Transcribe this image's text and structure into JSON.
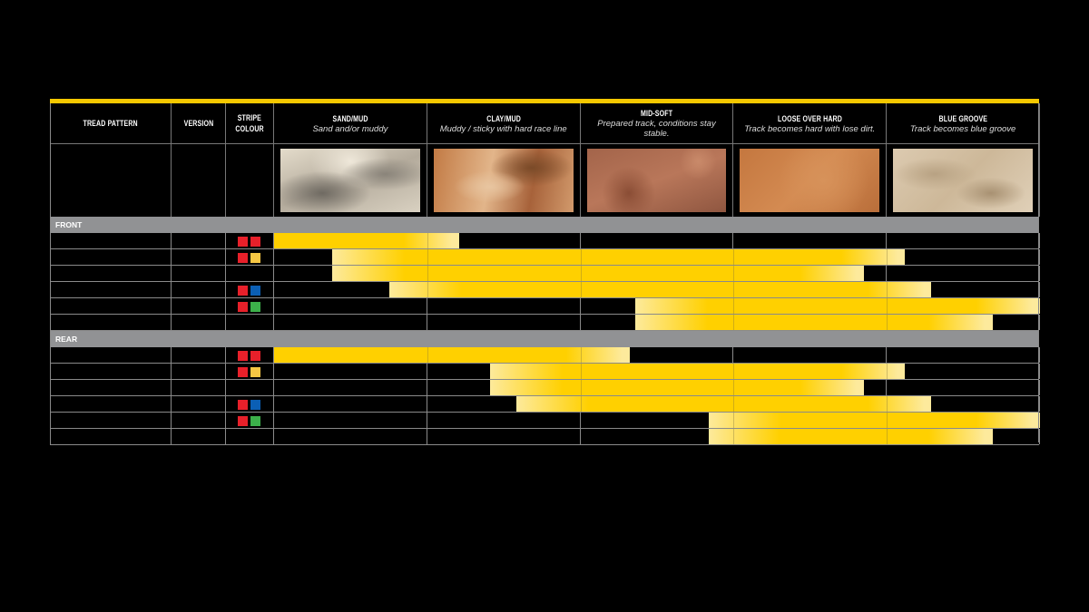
{
  "colors": {
    "accent": "#ffd000",
    "accent_light": "#fdea9c",
    "band": "#919294",
    "top_line": "#f5c800",
    "stripe": {
      "red": "#e8202a",
      "yellow": "#f7c744",
      "blue": "#0b5fb5",
      "green": "#3cb04a"
    }
  },
  "header": {
    "tread_pattern": "TREAD PATTERN",
    "version": "VERSION",
    "stripe_colour": [
      "STRIPE",
      "COLOUR"
    ],
    "conditions": [
      {
        "title": "SAND/MUD",
        "subtitle": "Sand and/or muddy",
        "image": "sand-texture"
      },
      {
        "title": "CLAY/MUD",
        "subtitle": "Muddy / sticky with hard race line",
        "image": "clay-mud-texture"
      },
      {
        "title": "MID-SOFT",
        "subtitle": "Prepared track, conditions stay stable.",
        "image": "mid-soft-soil-texture"
      },
      {
        "title": "LOOSE OVER HARD",
        "subtitle": "Track becomes hard with lose dirt.",
        "image": "loose-over-hard-texture"
      },
      {
        "title": "BLUE GROOVE",
        "subtitle": "Track becomes blue groove",
        "image": "blue-groove-texture"
      }
    ]
  },
  "chart_data": {
    "type": "range-bar",
    "scale": "condition columns 0-5 (Sand/Mud → Blue Groove)",
    "sections": [
      {
        "label": "FRONT",
        "rows": [
          {
            "stripe": [
              "red",
              "red"
            ],
            "range": [
              0,
              1.21
            ],
            "fade_start": false
          },
          {
            "stripe": [
              "red",
              "yellow"
            ],
            "range": [
              0.38,
              4.12
            ],
            "fade_start": true
          },
          {
            "stripe": [],
            "range": [
              0.38,
              3.85
            ],
            "fade_start": true
          },
          {
            "stripe": [
              "red",
              "blue"
            ],
            "range": [
              0.75,
              4.29
            ],
            "fade_start": true
          },
          {
            "stripe": [
              "red",
              "green"
            ],
            "range": [
              2.36,
              5.0
            ],
            "fade_start": true
          },
          {
            "stripe": [],
            "range": [
              2.36,
              4.69
            ],
            "fade_start": true
          }
        ]
      },
      {
        "label": "REAR",
        "rows": [
          {
            "stripe": [
              "red",
              "red"
            ],
            "range": [
              0,
              2.32
            ],
            "fade_start": false
          },
          {
            "stripe": [
              "red",
              "yellow"
            ],
            "range": [
              1.41,
              4.12
            ],
            "fade_start": true
          },
          {
            "stripe": [],
            "range": [
              1.41,
              3.85
            ],
            "fade_start": true
          },
          {
            "stripe": [
              "red",
              "blue"
            ],
            "range": [
              1.58,
              4.29
            ],
            "fade_start": true
          },
          {
            "stripe": [
              "red",
              "green"
            ],
            "range": [
              2.84,
              5.0
            ],
            "fade_start": true
          },
          {
            "stripe": [],
            "range": [
              2.84,
              4.69
            ],
            "fade_start": true
          }
        ]
      }
    ]
  }
}
